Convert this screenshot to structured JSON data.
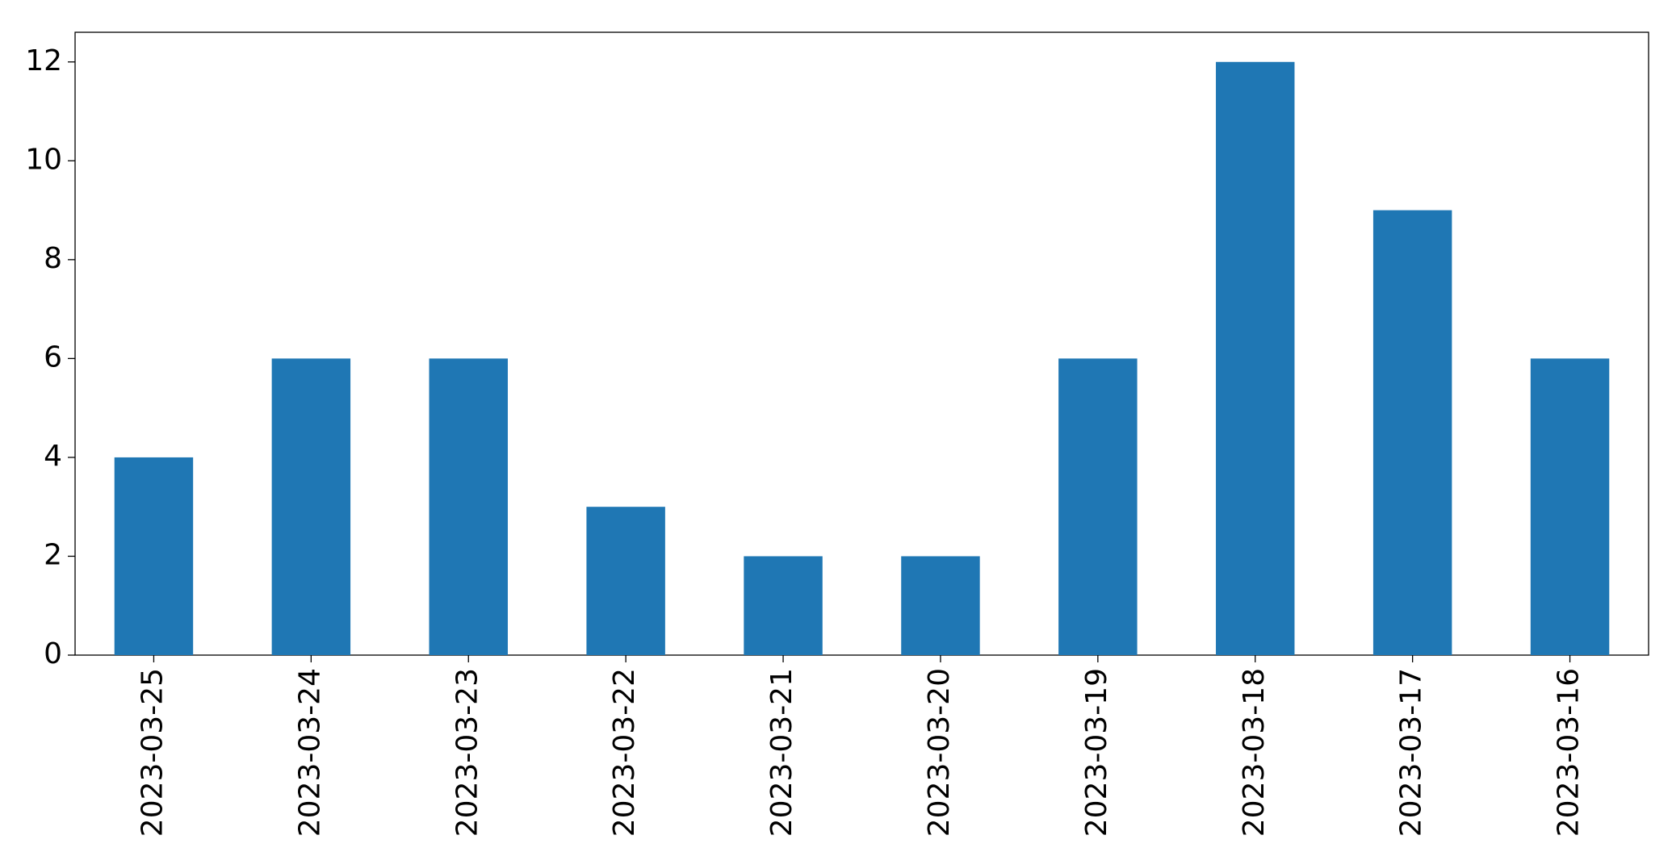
{
  "chart_data": {
    "type": "bar",
    "categories": [
      "2023-03-25",
      "2023-03-24",
      "2023-03-23",
      "2023-03-22",
      "2023-03-21",
      "2023-03-20",
      "2023-03-19",
      "2023-03-18",
      "2023-03-17",
      "2023-03-16"
    ],
    "values": [
      4,
      6,
      6,
      3,
      2,
      2,
      6,
      12,
      9,
      6
    ],
    "color": "#1f77b4",
    "ylim": [
      0,
      12.6
    ],
    "yticks": [
      0,
      2,
      4,
      6,
      8,
      10,
      12
    ],
    "grid": false
  }
}
